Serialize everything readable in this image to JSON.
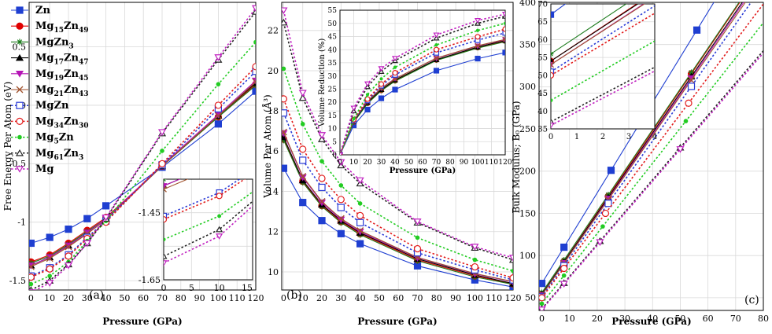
{
  "colors": {
    "Zn": "#1f3fd1",
    "Mg15Zn49": "#e00000",
    "MgZn3": "#1a7a1a",
    "Mg17Zn47": "#000000",
    "Mg19Zn45": "#b515b5",
    "Mg21Zn43": "#a0522d",
    "MgZn": "#2a3bd6",
    "Mg34Zn30": "#e21b1b",
    "Mg5Zn": "#22cc22",
    "Mg61Zn3": "#222222",
    "Mg": "#c020c0"
  },
  "legend": [
    {
      "key": "Zn",
      "base": "Zn",
      "sub": [],
      "marker": "square-filled"
    },
    {
      "key": "Mg15Zn49",
      "base": "Mg",
      "sub": [
        "15",
        "Zn",
        "49"
      ],
      "marker": "circle-filled"
    },
    {
      "key": "MgZn3",
      "base": "MgZn",
      "sub": [
        "3"
      ],
      "marker": "star"
    },
    {
      "key": "Mg17Zn47",
      "base": "Mg",
      "sub": [
        "17",
        "Zn",
        "47"
      ],
      "marker": "triangle-filled"
    },
    {
      "key": "Mg19Zn45",
      "base": "Mg",
      "sub": [
        "19",
        "Zn",
        "45"
      ],
      "marker": "triangle-down-filled"
    },
    {
      "key": "Mg21Zn43",
      "base": "Mg",
      "sub": [
        "21",
        "Zn",
        "43"
      ],
      "marker": "x"
    },
    {
      "key": "MgZn",
      "base": "MgZn",
      "sub": [],
      "marker": "square-open"
    },
    {
      "key": "Mg34Zn30",
      "base": "Mg",
      "sub": [
        "34",
        "Zn",
        "30"
      ],
      "marker": "circle-open"
    },
    {
      "key": "Mg5Zn",
      "base": "Mg",
      "sub": [
        "5",
        "Zn"
      ],
      "marker": "dot"
    },
    {
      "key": "Mg61Zn3",
      "base": "Mg",
      "sub": [
        "61",
        "Zn",
        "3"
      ],
      "marker": "triangle-open"
    },
    {
      "key": "Mg",
      "base": "Mg",
      "sub": [],
      "marker": "triangle-down-open"
    }
  ],
  "legend_labels": {
    "Zn": [
      "Zn"
    ],
    "Mg15Zn49": [
      "Mg",
      "15",
      "Zn",
      "49"
    ],
    "MgZn3": [
      "MgZn",
      "3"
    ],
    "Mg17Zn47": [
      "Mg",
      "17",
      "Zn",
      "47"
    ],
    "Mg19Zn45": [
      "Mg",
      "19",
      "Zn",
      "45"
    ],
    "Mg21Zn43": [
      "Mg",
      "21",
      "Zn",
      "43"
    ],
    "MgZn": [
      "MgZn"
    ],
    "Mg34Zn30": [
      "Mg",
      "34",
      "Zn",
      "30"
    ],
    "Mg5Zn": [
      "Mg",
      "5",
      "Zn"
    ],
    "Mg61Zn3": [
      "Mg",
      "61",
      "Zn",
      "3"
    ],
    "Mg": [
      "Mg"
    ]
  },
  "chart_data": [
    {
      "type": "line",
      "panel_label": "(a)",
      "xlabel": "Pressure (GPa)",
      "ylabel": "Free Energy Per Atom (eV)",
      "xlim": [
        -1,
        120
      ],
      "ylim": [
        -1.58,
        0.88
      ],
      "xticks": [
        0,
        10,
        20,
        30,
        40,
        50,
        60,
        70,
        80,
        90,
        100,
        110,
        120
      ],
      "yticks": [
        -1.5,
        -1,
        -0.5,
        0,
        0.5
      ],
      "yticklabels": [
        "-1.5",
        "-1",
        "-0.5",
        "0",
        "0.5"
      ],
      "x": [
        0,
        10,
        20,
        30,
        40,
        70,
        100,
        120
      ],
      "series": [
        {
          "name": "Zn",
          "values": [
            -1.18,
            -1.13,
            -1.06,
            -0.97,
            -0.86,
            -0.53,
            -0.16,
            0.12
          ],
          "marker": "square-filled",
          "dashed": false
        },
        {
          "name": "Mg15Zn49",
          "values": [
            -1.34,
            -1.28,
            -1.18,
            -1.07,
            -0.96,
            -0.52,
            -0.1,
            0.18
          ],
          "marker": "circle-filled",
          "dashed": false
        },
        {
          "name": "MgZn3",
          "values": [
            -1.35,
            -1.29,
            -1.19,
            -1.08,
            -0.97,
            -0.52,
            -0.1,
            0.17
          ],
          "marker": "star",
          "dashed": false
        },
        {
          "name": "Mg17Zn47",
          "values": [
            -1.37,
            -1.3,
            -1.2,
            -1.09,
            -0.97,
            -0.52,
            -0.09,
            0.19
          ],
          "marker": "triangle-filled",
          "dashed": false
        },
        {
          "name": "Mg19Zn45",
          "values": [
            -1.37,
            -1.3,
            -1.2,
            -1.09,
            -0.97,
            -0.51,
            -0.08,
            0.21
          ],
          "marker": "triangle-down-filled",
          "dashed": false
        },
        {
          "name": "Mg21Zn43",
          "values": [
            -1.38,
            -1.31,
            -1.21,
            -1.1,
            -0.98,
            -0.52,
            -0.09,
            0.2
          ],
          "marker": "x",
          "dashed": false
        },
        {
          "name": "MgZn",
          "values": [
            -1.46,
            -1.39,
            -1.28,
            -1.13,
            -0.99,
            -0.51,
            -0.03,
            0.29
          ],
          "marker": "square-open",
          "dashed": true
        },
        {
          "name": "Mg34Zn30",
          "values": [
            -1.47,
            -1.4,
            -1.29,
            -1.14,
            -1.0,
            -0.5,
            0.0,
            0.33
          ],
          "marker": "circle-open",
          "dashed": true
        },
        {
          "name": "Mg5Zn",
          "values": [
            -1.53,
            -1.46,
            -1.34,
            -1.16,
            -0.99,
            -0.39,
            0.18,
            0.54
          ],
          "marker": "dot",
          "dashed": true
        },
        {
          "name": "Mg61Zn3",
          "values": [
            -1.58,
            -1.5,
            -1.36,
            -1.18,
            -0.97,
            -0.24,
            0.39,
            0.8
          ],
          "marker": "triangle-open",
          "dashed": true
        },
        {
          "name": "Mg",
          "values": [
            -1.6,
            -1.52,
            -1.37,
            -1.18,
            -0.96,
            -0.23,
            0.41,
            0.83
          ],
          "marker": "triangle-down-open",
          "dashed": true
        }
      ],
      "inset": {
        "xlim": [
          0,
          16
        ],
        "ylim": [
          -1.65,
          -1.35
        ],
        "xticks": [
          0,
          5,
          10,
          15
        ],
        "yticks": [
          -1.65,
          -1.45
        ],
        "yticklabels": [
          "-1.65",
          "-1.45"
        ]
      }
    },
    {
      "type": "line",
      "panel_label": "(b)",
      "xlabel": "Pressure (GPa)",
      "ylabel": "Volume Per Atom (Å³)",
      "xlim": [
        -1,
        120
      ],
      "ylim": [
        9.1,
        23.4
      ],
      "xticks": [
        0,
        10,
        20,
        30,
        40,
        50,
        60,
        70,
        80,
        90,
        100,
        110,
        120
      ],
      "yticks": [
        10,
        12,
        14,
        16,
        18,
        20,
        22
      ],
      "x": [
        0,
        10,
        20,
        30,
        40,
        70,
        100,
        120
      ],
      "series": [
        {
          "name": "Zn",
          "values": [
            15.15,
            13.45,
            12.55,
            11.9,
            11.4,
            10.3,
            9.6,
            9.25
          ],
          "marker": "square-filled",
          "dashed": false
        },
        {
          "name": "Mg15Zn49",
          "values": [
            16.6,
            14.5,
            13.3,
            12.5,
            11.9,
            10.6,
            9.8,
            9.4
          ],
          "marker": "circle-filled",
          "dashed": false
        },
        {
          "name": "MgZn3",
          "values": [
            16.55,
            14.45,
            13.25,
            12.45,
            11.85,
            10.55,
            9.75,
            9.38
          ],
          "marker": "star",
          "dashed": false
        },
        {
          "name": "Mg17Zn47",
          "values": [
            16.7,
            14.55,
            13.35,
            12.55,
            11.95,
            10.65,
            9.85,
            9.42
          ],
          "marker": "triangle-filled",
          "dashed": false
        },
        {
          "name": "Mg19Zn45",
          "values": [
            16.9,
            14.7,
            13.45,
            12.6,
            12.0,
            10.7,
            9.9,
            9.5
          ],
          "marker": "triangle-down-filled",
          "dashed": false
        },
        {
          "name": "Mg21Zn43",
          "values": [
            16.95,
            14.75,
            13.5,
            12.65,
            12.05,
            10.72,
            9.92,
            9.52
          ],
          "marker": "x",
          "dashed": false
        },
        {
          "name": "MgZn",
          "values": [
            17.9,
            15.55,
            14.2,
            13.2,
            12.45,
            10.95,
            10.1,
            9.6
          ],
          "marker": "square-open",
          "dashed": true
        },
        {
          "name": "Mg34Zn30",
          "values": [
            18.6,
            16.1,
            14.65,
            13.6,
            12.8,
            11.15,
            10.25,
            9.7
          ],
          "marker": "circle-open",
          "dashed": true
        },
        {
          "name": "Mg5Zn",
          "values": [
            20.1,
            17.35,
            15.5,
            14.3,
            13.4,
            11.7,
            10.6,
            10.05
          ],
          "marker": "dot",
          "dashed": true
        },
        {
          "name": "Mg61Zn3",
          "values": [
            22.4,
            18.65,
            16.6,
            15.3,
            14.4,
            12.45,
            11.2,
            10.6
          ],
          "marker": "triangle-open",
          "dashed": true
        },
        {
          "name": "Mg",
          "values": [
            23.0,
            18.9,
            16.8,
            15.45,
            14.55,
            12.5,
            11.25,
            10.7
          ],
          "marker": "triangle-down-open",
          "dashed": true
        }
      ],
      "inset": {
        "xlabel": "Pressure (GPa)",
        "ylabel": "Volume Reduction (%)",
        "xlim": [
          0,
          120
        ],
        "ylim": [
          0,
          55
        ],
        "xticks": [
          0,
          10,
          20,
          30,
          40,
          50,
          60,
          70,
          80,
          90,
          100,
          110,
          120
        ],
        "yticks": [
          0,
          5,
          10,
          15,
          20,
          25,
          30,
          35,
          40,
          45,
          50,
          55
        ],
        "x": [
          0,
          10,
          20,
          30,
          40,
          70,
          100,
          120
        ],
        "series": [
          {
            "name": "Zn",
            "values": [
              0,
              11.2,
              17.2,
              21.5,
              24.8,
              32.0,
              36.6,
              38.9
            ]
          },
          {
            "name": "Mg15Zn49",
            "values": [
              0,
              12.5,
              19.6,
              24.5,
              28.2,
              36.1,
              40.8,
              43.3
            ]
          },
          {
            "name": "MgZn3",
            "values": [
              0,
              12.4,
              19.5,
              24.4,
              28.0,
              35.9,
              40.6,
              43.0
            ]
          },
          {
            "name": "Mg17Zn47",
            "values": [
              0,
              12.8,
              20.0,
              24.8,
              28.5,
              36.2,
              41.0,
              43.5
            ]
          },
          {
            "name": "Mg19Zn45",
            "values": [
              0,
              13.0,
              20.4,
              25.4,
              29.0,
              36.7,
              41.4,
              43.8
            ]
          },
          {
            "name": "Mg21Zn43",
            "values": [
              0,
              13.0,
              20.4,
              25.3,
              28.9,
              36.8,
              41.5,
              43.9
            ]
          },
          {
            "name": "MgZn",
            "values": [
              0,
              13.1,
              20.7,
              26.3,
              30.4,
              38.8,
              43.6,
              46.4
            ]
          },
          {
            "name": "Mg34Zn30",
            "values": [
              0,
              13.4,
              21.2,
              26.9,
              31.2,
              40.0,
              44.9,
              47.8
            ]
          },
          {
            "name": "Mg5Zn",
            "values": [
              0,
              13.7,
              22.9,
              28.9,
              33.3,
              41.8,
              47.3,
              50.0
            ]
          },
          {
            "name": "Mg61Zn3",
            "values": [
              0,
              16.7,
              25.9,
              31.7,
              35.8,
              44.4,
              50.0,
              52.7
            ]
          },
          {
            "name": "Mg",
            "values": [
              0,
              17.8,
              27.0,
              32.8,
              36.7,
              45.6,
              51.1,
              53.5
            ]
          }
        ]
      }
    },
    {
      "type": "line",
      "panel_label": "(c)",
      "xlabel": "Pressure (GPa)",
      "ylabel": "Bulk Modulus; B₀ (GPa)",
      "xlim": [
        -1,
        80
      ],
      "ylim": [
        35,
        400
      ],
      "xticks": [
        0,
        10,
        20,
        30,
        40,
        50,
        60,
        70,
        80
      ],
      "yticks": [
        50,
        100,
        150,
        200,
        250,
        300,
        350,
        400
      ],
      "lines": [
        {
          "name": "Zn",
          "b0": 67,
          "slope": 5.36,
          "marker_x": [
            0,
            8,
            25,
            56
          ],
          "marker": "square-filled",
          "dashed": false
        },
        {
          "name": "Mg15Zn49",
          "b0": 54,
          "slope": 4.84,
          "marker_x": [
            0,
            8,
            24,
            54
          ],
          "marker": "circle-filled",
          "dashed": false
        },
        {
          "name": "MgZn3",
          "b0": 56,
          "slope": 4.83,
          "marker_x": [
            0,
            8,
            24,
            54
          ],
          "marker": "star",
          "dashed": false
        },
        {
          "name": "Mg17Zn47",
          "b0": 54,
          "slope": 4.78,
          "marker_x": [
            0,
            8,
            24,
            54
          ],
          "marker": "triangle-filled",
          "dashed": false
        },
        {
          "name": "Mg19Zn45",
          "b0": 53,
          "slope": 4.76,
          "marker_x": [
            0,
            8,
            24,
            54
          ],
          "marker": "triangle-down-filled",
          "dashed": false
        },
        {
          "name": "Mg21Zn43",
          "b0": 53,
          "slope": 4.72,
          "marker_x": [
            0,
            8,
            24,
            54
          ],
          "marker": "x",
          "dashed": false
        },
        {
          "name": "MgZn",
          "b0": 51,
          "slope": 4.62,
          "marker_x": [
            0,
            8,
            24,
            54
          ],
          "marker": "square-open",
          "dashed": true
        },
        {
          "name": "Mg34Zn30",
          "b0": 50,
          "slope": 4.35,
          "marker_x": [
            0,
            8,
            23,
            53
          ],
          "marker": "circle-open",
          "dashed": true
        },
        {
          "name": "Mg5Zn",
          "b0": 43,
          "slope": 4.16,
          "marker_x": [
            0,
            8,
            22,
            52
          ],
          "marker": "dot",
          "dashed": true
        },
        {
          "name": "Mg61Zn3",
          "b0": 37,
          "slope": 3.82,
          "marker_x": [
            0,
            8,
            21,
            50
          ],
          "marker": "triangle-open",
          "dashed": true
        },
        {
          "name": "Mg",
          "b0": 36,
          "slope": 3.8,
          "marker_x": [
            0,
            8,
            21,
            50
          ],
          "marker": "triangle-down-open",
          "dashed": true
        }
      ],
      "inset": {
        "xlim": [
          0,
          4
        ],
        "ylim": [
          35,
          70
        ],
        "xticks": [
          0,
          1,
          2,
          3,
          4
        ],
        "yticks": [
          35,
          40,
          45,
          50,
          55,
          60,
          65,
          70
        ]
      }
    }
  ]
}
